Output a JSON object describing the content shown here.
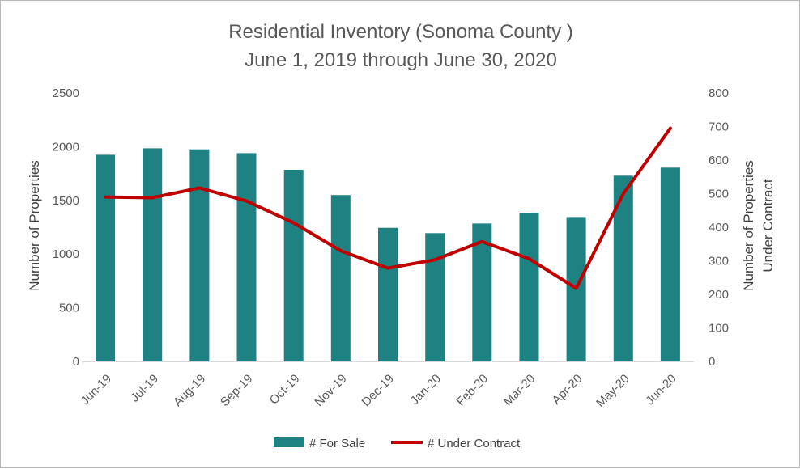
{
  "chart_data": {
    "type": "bar",
    "title": "Residential Inventory (Sonoma County )",
    "subtitle": "June 1, 2019 through June 30, 2020",
    "categories": [
      "Jun-19",
      "Jul-19",
      "Aug-19",
      "Sep-19",
      "Oct-19",
      "Nov-19",
      "Dec-19",
      "Jan-20",
      "Feb-20",
      "Mar-20",
      "Apr-20",
      "May-20",
      "Jun-20"
    ],
    "series": [
      {
        "name": "# For Sale",
        "type": "bar",
        "axis": "left",
        "color": "#1f8282",
        "values": [
          1925,
          1985,
          1975,
          1940,
          1785,
          1550,
          1245,
          1195,
          1285,
          1385,
          1345,
          1730,
          1805
        ]
      },
      {
        "name": "# Under Contract",
        "type": "line",
        "axis": "right",
        "color": "#c00000",
        "values": [
          490,
          488,
          517,
          478,
          413,
          330,
          278,
          303,
          357,
          306,
          218,
          500,
          695
        ]
      }
    ],
    "ylabel": "Number of Properties",
    "y2label_lines": [
      "Number of Properties",
      "Under Contract"
    ],
    "ylim": [
      0,
      2500
    ],
    "y_ticks": [
      0,
      500,
      1000,
      1500,
      2000,
      2500
    ],
    "y2lim": [
      0,
      800
    ],
    "y2_ticks": [
      0,
      100,
      200,
      300,
      400,
      500,
      600,
      700,
      800
    ],
    "grid": false,
    "legend_position": "bottom"
  }
}
